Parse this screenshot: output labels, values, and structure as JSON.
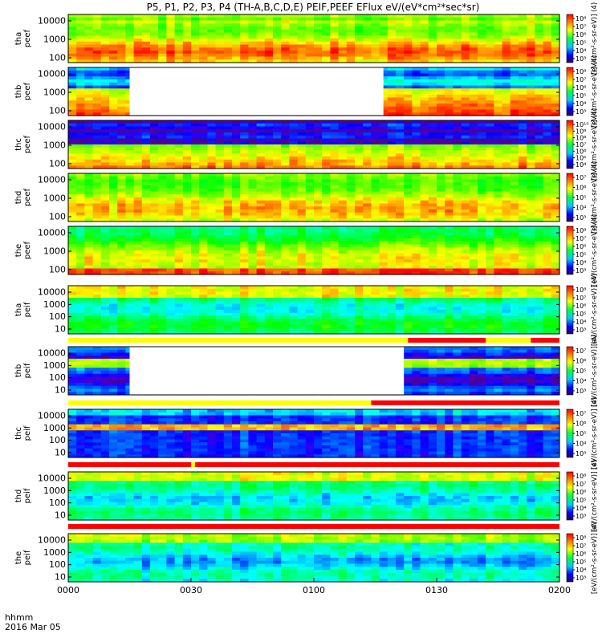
{
  "chart_data": {
    "type": "heatmap",
    "title": "P5, P1, P2, P3, P4 (TH-A,B,C,D,E) PEIF,PEEF EFlux eV/(eV*cm²*sec*sr)",
    "x_axis": {
      "range": [
        "0000",
        "0200"
      ],
      "ticks": [
        "0000",
        "0030",
        "0100",
        "0130",
        "0200"
      ],
      "label_lines": [
        "hhmm",
        "2016 Mar 05"
      ]
    },
    "panels": [
      {
        "probe": "tha",
        "species": "peef",
        "ylabel": "tha\npeef",
        "yticks": [
          "10000",
          "1000",
          "100"
        ],
        "cb_ticks": [
          "10⁸",
          "10⁷",
          "10⁶",
          "10⁵",
          "10⁴",
          "10³"
        ],
        "colorbar_label": "[eV/(cm²-s-sr-eV)] (4)",
        "gap": null
      },
      {
        "probe": "thb",
        "species": "peef",
        "ylabel": "thb\npeef",
        "yticks": [
          "10000",
          "1000",
          "100"
        ],
        "cb_ticks": [
          "10⁸",
          "10⁷",
          "10⁶",
          "10⁵",
          "10⁴",
          "10³"
        ],
        "colorbar_label": "[eV/(cm²-s-sr-eV)] (4)",
        "gap": [
          "0015",
          "0117"
        ]
      },
      {
        "probe": "thc",
        "species": "peef",
        "ylabel": "thc\npeef",
        "yticks": [
          "10000",
          "1000",
          "100"
        ],
        "cb_ticks": [
          "10¹⁰",
          "10⁹",
          "10⁸",
          "10⁷",
          "10⁶",
          "10⁵",
          "10⁴"
        ],
        "colorbar_label": "[eV/(cm²-s-sr-eV)] (4)",
        "gap": null
      },
      {
        "probe": "thd",
        "species": "peef",
        "ylabel": "thd\npeef",
        "yticks": [
          "10000",
          "1000",
          "100"
        ],
        "cb_ticks": [
          "10⁷",
          "10⁶",
          "10⁵",
          "10⁴",
          "10³"
        ],
        "colorbar_label": "[eV/(cm²-s-sr-eV)] (4)",
        "gap": null
      },
      {
        "probe": "the",
        "species": "peef",
        "ylabel": "the\npeef",
        "yticks": [
          "10000",
          "1000",
          "100"
        ],
        "cb_ticks": [
          "10⁸",
          "10⁷",
          "10⁶",
          "10⁵",
          "10⁴",
          "10³"
        ],
        "colorbar_label": "[eV/(cm²-s-sr-eV)] (4)",
        "gap": null
      },
      {
        "probe": "tha",
        "species": "peif",
        "ylabel": "tha\npeif",
        "yticks": [
          "10000",
          "1000",
          "100",
          "10"
        ],
        "cb_ticks": [
          "10⁸",
          "10⁷",
          "10⁶",
          "10⁵",
          "10⁴",
          "10³"
        ],
        "colorbar_label": "[eV/(cm²-s-sr-eV)] (4)",
        "gap": null
      },
      {
        "probe": "thb",
        "species": "peif",
        "ylabel": "thb\npeif",
        "yticks": [
          "10000",
          "1000",
          "100",
          "10"
        ],
        "cb_ticks": [
          "10⁷",
          "10⁶",
          "10⁵",
          "10⁴",
          "10³"
        ],
        "colorbar_label": "[eV/(cm²-s-sr-eV)] (4)",
        "gap": [
          "0015",
          "0122"
        ]
      },
      {
        "probe": "thc",
        "species": "peif",
        "ylabel": "thc\npeif",
        "yticks": [
          "10000",
          "1000",
          "100",
          "10"
        ],
        "cb_ticks": [
          "10⁷",
          "10⁶",
          "10⁵",
          "10⁴",
          "10³"
        ],
        "colorbar_label": "[eV/(cm²-s-sr-eV)] (4)",
        "gap": null
      },
      {
        "probe": "thd",
        "species": "peif",
        "ylabel": "thd\npeif",
        "yticks": [
          "10000",
          "1000",
          "100",
          "10"
        ],
        "cb_ticks": [
          "10⁸",
          "10⁷",
          "10⁶",
          "10⁵",
          "10⁴",
          "10³"
        ],
        "colorbar_label": "[eV/(cm²-s-sr-eV)] (4)",
        "gap": null
      },
      {
        "probe": "the",
        "species": "peif",
        "ylabel": "the\npeif",
        "yticks": [
          "10000",
          "1000",
          "100",
          "10"
        ],
        "cb_ticks": [
          "10⁸",
          "10⁷",
          "10⁶",
          "10⁵",
          "10⁴",
          "10³"
        ],
        "colorbar_label": "[eV/(cm²-s-sr-eV)] (4)",
        "gap": null
      }
    ],
    "flag_bars": [
      {
        "after_panel": 5,
        "segments": [
          {
            "from": "0000",
            "to": "0123",
            "color": "#ffff00"
          },
          {
            "from": "0123",
            "to": "0142",
            "color": "#ff0000"
          },
          {
            "from": "0142",
            "to": "0153",
            "color": "#ffff00"
          },
          {
            "from": "0153",
            "to": "0200",
            "color": "#ff0000"
          }
        ]
      },
      {
        "after_panel": 6,
        "segments": [
          {
            "from": "0000",
            "to": "0114",
            "color": "#ffff00"
          },
          {
            "from": "0114",
            "to": "0200",
            "color": "#ff0000"
          }
        ]
      },
      {
        "after_panel": 7,
        "segments": [
          {
            "from": "0000",
            "to": "0030",
            "color": "#ff0000"
          },
          {
            "from": "0030",
            "to": "0031",
            "color": "#ffff00"
          },
          {
            "from": "0031",
            "to": "0200",
            "color": "#ff0000"
          }
        ]
      },
      {
        "after_panel": 8,
        "segments": [
          {
            "from": "0000",
            "to": "0200",
            "color": "#ff0000"
          }
        ]
      }
    ],
    "colors": {
      "low": "#000080",
      "mid": "#00ff00",
      "high": "#ff0000",
      "gap": "#ffffff"
    }
  }
}
